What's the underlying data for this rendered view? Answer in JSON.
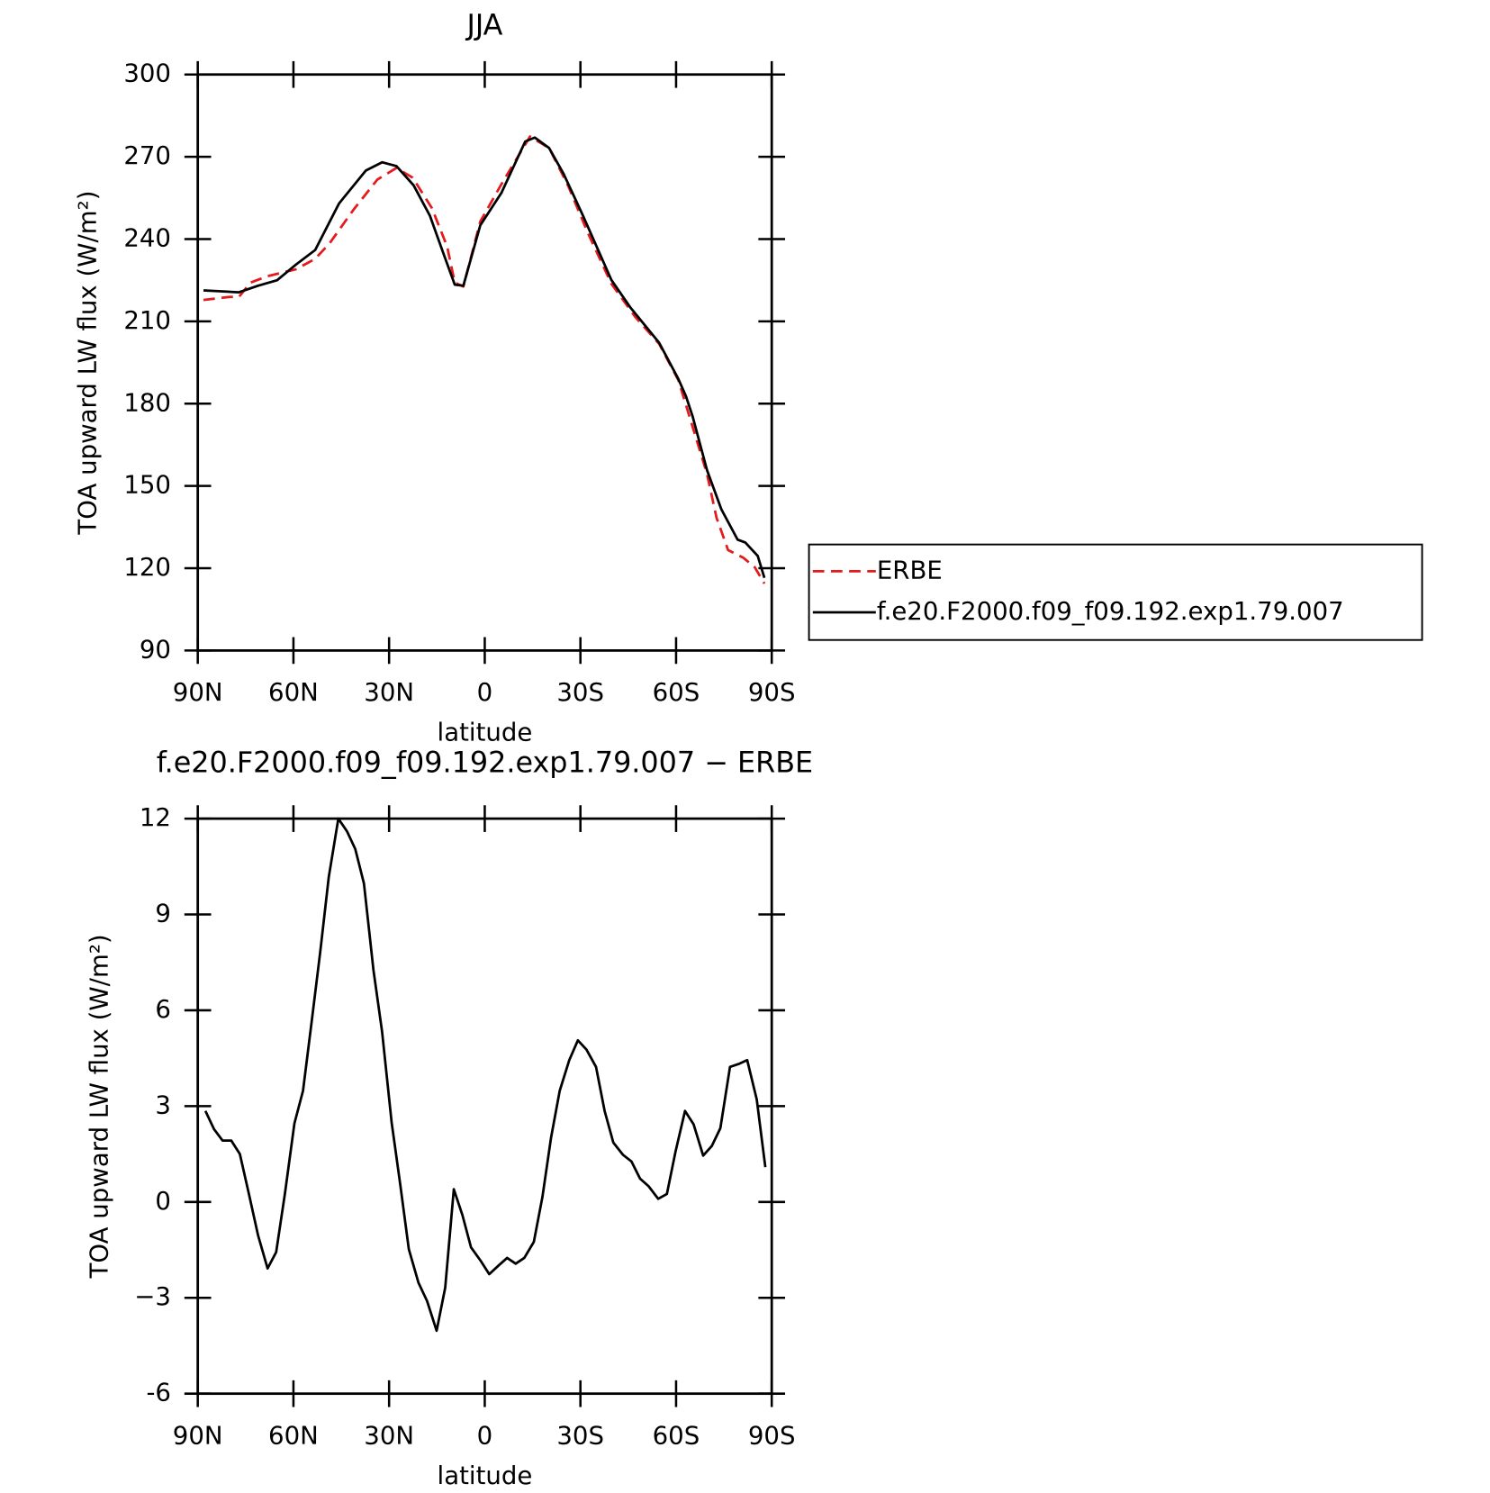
{
  "chart_data": [
    {
      "type": "line",
      "title": "JJA",
      "xlabel": "latitude",
      "ylabel": "TOA upward LW flux (W/m²)",
      "xlim": [
        90,
        -90
      ],
      "xticks": [
        {
          "value": 90,
          "label": "90N"
        },
        {
          "value": 60,
          "label": "60N"
        },
        {
          "value": 30,
          "label": "30N"
        },
        0,
        {
          "value": -30,
          "label": "30S"
        },
        {
          "value": -60,
          "label": "60S"
        },
        {
          "value": -90,
          "label": "90S"
        }
      ],
      "ylim": [
        90,
        300
      ],
      "yticks": [
        90,
        120,
        150,
        180,
        210,
        240,
        270,
        300
      ],
      "legend": "right",
      "series": [
        {
          "name": "ERBE",
          "color": "#e41a1c",
          "dash": true,
          "x": [
            88.2,
            80.1,
            77.1,
            73.5,
            68.1,
            59.2,
            53.2,
            48.7,
            41.2,
            33.7,
            27.7,
            22.6,
            16.6,
            11.8,
            9.4,
            6.7,
            1.4,
            -5.2,
            -14.2,
            -20.2,
            -26.2,
            -32.2,
            -39.7,
            -47.2,
            -54.7,
            -60.7,
            -65.2,
            -69.7,
            -72.7,
            -76.3,
            -81.1,
            -84.7,
            -87.7
          ],
          "values": [
            217.8,
            218.9,
            218.9,
            224.1,
            226.5,
            229,
            232.8,
            238.4,
            250.6,
            261.7,
            265.9,
            262.4,
            251.3,
            237.3,
            224.1,
            222.7,
            246.4,
            260,
            277.4,
            273.2,
            259.3,
            242.6,
            223.7,
            211.6,
            201.8,
            188.6,
            171.5,
            154.4,
            138.4,
            126.6,
            123.8,
            120.3,
            114.4
          ]
        },
        {
          "name": "f.e20.F2000.f09_f09.192.exp1.79.007",
          "color": "#000000",
          "dash": false,
          "x": [
            88.2,
            77.1,
            71.1,
            65.1,
            59.2,
            53.2,
            45.7,
            37.3,
            32.2,
            27.7,
            22.3,
            17.2,
            12.7,
            9.4,
            6.7,
            1.4,
            -5.2,
            -12.7,
            -15.7,
            -20.2,
            -24.7,
            -30.7,
            -39.7,
            -45.7,
            -54.7,
            -60.7,
            -63.1,
            -65.2,
            -69.7,
            -74.2,
            -79.3,
            -81.7,
            -85.6,
            -87.7
          ],
          "values": [
            221.3,
            220.6,
            223,
            225,
            230.7,
            236,
            253,
            265,
            268,
            266.6,
            259.6,
            248.5,
            233.9,
            223.4,
            223,
            245,
            256.8,
            275.6,
            277,
            273.2,
            263.8,
            248.8,
            225.1,
            215,
            202.2,
            189,
            182.7,
            175.3,
            155.8,
            141.5,
            130.4,
            129.4,
            124.5,
            116.5
          ]
        }
      ]
    },
    {
      "type": "line",
      "title": "f.e20.F2000.f09_f09.192.exp1.79.007 − ERBE",
      "xlabel": "latitude",
      "ylabel": "TOA upward LW flux (W/m²)",
      "xlim": [
        90,
        -90
      ],
      "xticks": [
        {
          "value": 90,
          "label": "90N"
        },
        {
          "value": 60,
          "label": "60N"
        },
        {
          "value": 30,
          "label": "30N"
        },
        0,
        {
          "value": -30,
          "label": "30S"
        },
        {
          "value": -60,
          "label": "60S"
        },
        {
          "value": -90,
          "label": "90S"
        }
      ],
      "ylim": [
        -6,
        12
      ],
      "yticks": [
        -6,
        {
          "value": -3,
          "label": "−3"
        },
        0,
        3,
        6,
        9,
        12
      ],
      "series": [
        {
          "color": "#000000",
          "dash": false,
          "x": [
            87.6,
            84.9,
            82.2,
            79.5,
            76.8,
            74.1,
            71.1,
            68.1,
            65.4,
            62.7,
            59.7,
            57.0,
            54.3,
            51.6,
            48.9,
            45.9,
            43.2,
            40.6,
            37.9,
            34.9,
            32.2,
            29.2,
            26.5,
            23.8,
            20.8,
            18.1,
            15.1,
            12.4,
            9.7,
            7.0,
            4.3,
            1.3,
            -1.4,
            -4.3,
            -7.0,
            -9.7,
            -12.4,
            -15.4,
            -18.1,
            -20.8,
            -23.5,
            -26.5,
            -29.2,
            -31.9,
            -34.9,
            -37.6,
            -40.3,
            -43.3,
            -46.0,
            -48.7,
            -51.4,
            -54.4,
            -57.1,
            -59.8,
            -62.8,
            -65.5,
            -68.5,
            -71.2,
            -73.9,
            -76.9,
            -79.6,
            -82.3,
            -85.3,
            -88.0
          ],
          "values": [
            2.85,
            2.28,
            1.92,
            1.92,
            1.5,
            0.31,
            -1.04,
            -2.08,
            -1.57,
            0.25,
            2.46,
            3.48,
            5.63,
            7.82,
            10.18,
            12,
            11.6,
            11.05,
            9.97,
            7.25,
            5.33,
            2.49,
            0.55,
            -1.48,
            -2.53,
            -3.1,
            -4.03,
            -2.68,
            0.4,
            -0.41,
            -1.42,
            -1.84,
            -2.26,
            -1.99,
            -1.75,
            -1.93,
            -1.75,
            -1.25,
            0.16,
            2.01,
            3.48,
            4.44,
            5.06,
            4.77,
            4.23,
            2.85,
            1.86,
            1.48,
            1.27,
            0.73,
            0.49,
            0.1,
            0.25,
            1.57,
            2.85,
            2.43,
            1.45,
            1.75,
            2.31,
            4.23,
            4.32,
            4.44,
            3.21,
            1.09
          ]
        }
      ]
    }
  ]
}
